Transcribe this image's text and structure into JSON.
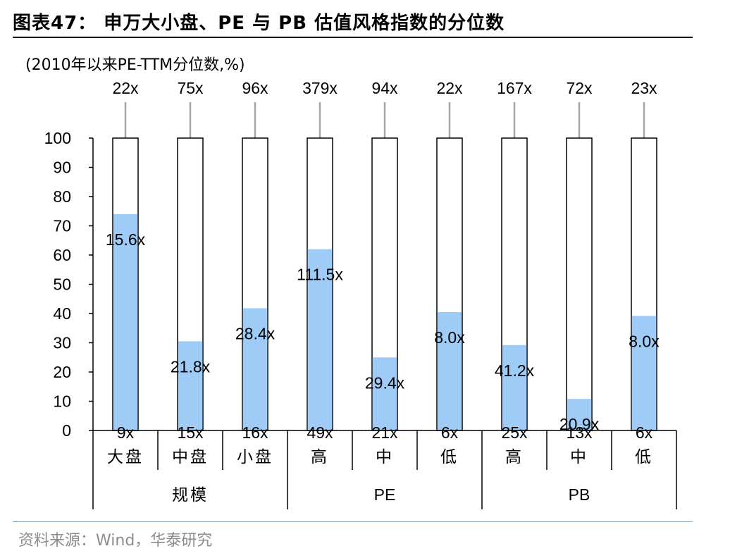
{
  "header": {
    "title": "图表47： 申万大小盘、PE 与 PB 估值风格指数的分位数",
    "subtitle": "(2010年以来PE-TTM分位数,%)"
  },
  "footer": {
    "source": "资料来源：Wind，华泰研究"
  },
  "chart_data": {
    "type": "bar",
    "ylim": [
      0,
      100
    ],
    "yticks": [
      "0",
      "10",
      "20",
      "30",
      "40",
      "50",
      "60",
      "70",
      "80",
      "90",
      "100"
    ],
    "categories": [
      "大盘",
      "中盘",
      "小盘",
      "高",
      "中",
      "低",
      "高",
      "中",
      "低"
    ],
    "groups": [
      {
        "label": "规模",
        "span": 3
      },
      {
        "label": "PE",
        "span": 3
      },
      {
        "label": "PB",
        "span": 3
      }
    ],
    "values": [
      74,
      30.5,
      41.8,
      62,
      25,
      40.5,
      29.2,
      10.8,
      39.2
    ],
    "value_labels": [
      "15.6x",
      "21.8x",
      "28.4x",
      "111.5x",
      "29.4x",
      "8.0x",
      "41.2x",
      "20.9x",
      "8.0x"
    ],
    "max_labels": [
      "22x",
      "75x",
      "96x",
      "379x",
      "94x",
      "22x",
      "167x",
      "72x",
      "23x"
    ],
    "min_labels": [
      "9x",
      "15x",
      "16x",
      "49x",
      "21x",
      "6x",
      "25x",
      "13x",
      "6x"
    ],
    "colors": {
      "fill": "#9fcbf7",
      "outline": "#000000",
      "whisker": "#a6a6a6"
    }
  }
}
